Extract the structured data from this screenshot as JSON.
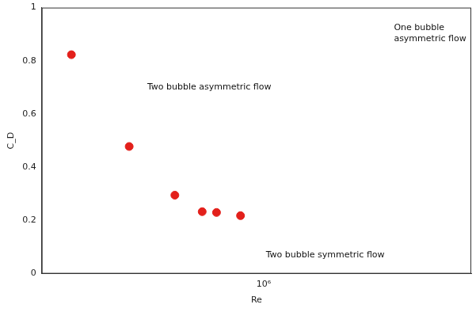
{
  "chart_data": {
    "type": "scatter",
    "x_label": "Re",
    "y_label": "C_D",
    "x": [
      248000,
      377000,
      525000,
      640000,
      710000,
      845000
    ],
    "values": [
      0.823,
      0.478,
      0.295,
      0.233,
      0.23,
      0.218
    ],
    "color": "#e3201b",
    "marker": "circle",
    "log": "x",
    "xlim": [
      200000,
      4500000
    ],
    "xticks": [
      {
        "value": 1000000,
        "label": "10⁶"
      }
    ],
    "ylim": [
      0,
      1
    ],
    "yticks": [
      0,
      0.2,
      0.4,
      0.6,
      0.8,
      1
    ],
    "grid": false,
    "annotations": [
      {
        "text": [
          "One bubble",
          "asymmetric flow"
        ]
      },
      {
        "text": [
          "Two bubble asymmetric flow"
        ]
      },
      {
        "text": [
          "Two bubble symmetric flow"
        ]
      }
    ]
  }
}
